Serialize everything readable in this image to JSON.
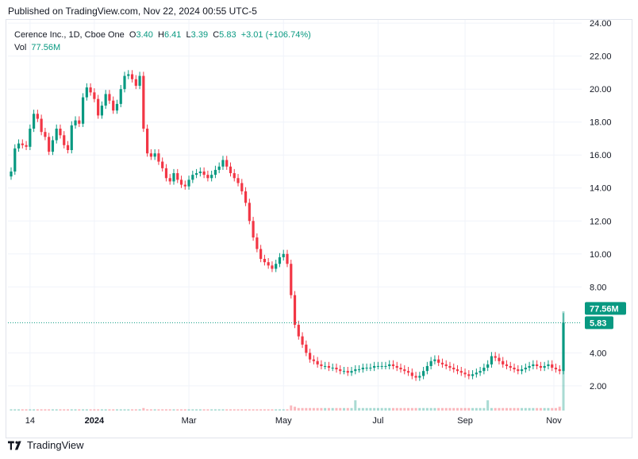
{
  "publish_text": "Published on TradingView.com, Nov 22, 2024 00:55 UTC-5",
  "legend": {
    "symbol": "Cerence Inc., 1D, Cboe One",
    "o_label": "O",
    "o_value": "3.40",
    "h_label": "H",
    "h_value": "6.41",
    "l_label": "L",
    "l_value": "3.39",
    "c_label": "C",
    "c_value": "5.83",
    "change": "+3.01 (+106.74%)",
    "vol_label": "Vol",
    "vol_value": "77.56M"
  },
  "footer": {
    "brand": "TradingView"
  },
  "colors": {
    "up": "#089981",
    "down": "#f23645",
    "grid": "#f0f3fa",
    "axis_text": "#131722"
  },
  "chart_data": {
    "type": "candlestick",
    "title": "Cerence Inc., 1D, Cboe One",
    "x_ticks": [
      "14",
      "2024",
      "Mar",
      "May",
      "Jul",
      "Sep",
      "Nov"
    ],
    "y_ticks": [
      "2.00",
      "4.00",
      "8.00",
      "10.00",
      "12.00",
      "14.00",
      "16.00",
      "18.00",
      "20.00",
      "22.00",
      "24.00"
    ],
    "ylim": [
      0.5,
      24.2
    ],
    "last_price_label": "5.83",
    "volume_label": "77.56M",
    "close_approx": [
      15.0,
      16.4,
      16.7,
      16.6,
      16.5,
      17.6,
      18.5,
      18.2,
      17.4,
      17.1,
      16.2,
      16.9,
      17.6,
      17.2,
      16.6,
      16.3,
      17.8,
      18.1,
      17.9,
      19.5,
      20.1,
      19.8,
      19.4,
      18.4,
      19.0,
      19.7,
      19.3,
      18.7,
      19.1,
      20.0,
      20.8,
      20.9,
      20.6,
      20.2,
      20.8,
      17.6,
      16.1,
      15.9,
      16.1,
      15.6,
      15.2,
      14.6,
      14.4,
      14.9,
      14.5,
      14.2,
      14.1,
      14.5,
      14.8,
      14.9,
      15.0,
      14.8,
      14.6,
      14.8,
      15.1,
      15.3,
      15.7,
      15.3,
      14.9,
      14.6,
      14.3,
      13.8,
      13.1,
      12.0,
      11.0,
      10.3,
      9.7,
      9.5,
      9.3,
      9.1,
      9.4,
      9.8,
      10.0,
      9.4,
      7.5,
      5.7,
      5.0,
      4.5,
      4.0,
      3.6,
      3.5,
      3.3,
      3.2,
      3.2,
      3.1,
      3.1,
      3.0,
      2.9,
      2.9,
      2.8,
      2.9,
      3.0,
      3.0,
      3.1,
      3.1,
      3.1,
      3.2,
      3.2,
      3.2,
      3.2,
      3.3,
      3.2,
      3.1,
      3.0,
      2.9,
      2.8,
      2.6,
      2.5,
      2.6,
      2.9,
      3.2,
      3.5,
      3.6,
      3.4,
      3.3,
      3.2,
      3.1,
      3.0,
      2.9,
      2.8,
      2.7,
      2.6,
      2.7,
      2.8,
      2.9,
      3.1,
      3.3,
      3.8,
      3.7,
      3.5,
      3.3,
      3.2,
      3.1,
      3.0,
      2.9,
      3.0,
      3.1,
      3.2,
      3.3,
      3.2,
      3.1,
      3.2,
      3.3,
      3.1,
      3.0,
      2.9,
      5.83
    ],
    "volume_approx": [
      1,
      1,
      1,
      1,
      1,
      1,
      1,
      1,
      1,
      1,
      1,
      1,
      1,
      1,
      1,
      1,
      1,
      1,
      1,
      1,
      1,
      1,
      1,
      1,
      1,
      1,
      1,
      1,
      1,
      1,
      1,
      1,
      1,
      1,
      1,
      2,
      1,
      1,
      1,
      1,
      1,
      1,
      1,
      1,
      1,
      1,
      1,
      1,
      1,
      1,
      1,
      1,
      1,
      1,
      1,
      1,
      1,
      1,
      1,
      1,
      1,
      1,
      1,
      1,
      1,
      1,
      1,
      1,
      1,
      1,
      1,
      1,
      1,
      1,
      4,
      3,
      2,
      2,
      2,
      2,
      2,
      2,
      2,
      2,
      2,
      2,
      2,
      2,
      2,
      2,
      2,
      8,
      2,
      2,
      2,
      2,
      2,
      2,
      2,
      2,
      2,
      2,
      2,
      2,
      2,
      2,
      2,
      2,
      2,
      2,
      2,
      2,
      2,
      2,
      2,
      2,
      2,
      2,
      2,
      2,
      2,
      2,
      2,
      2,
      2,
      2,
      8,
      2,
      2,
      2,
      2,
      2,
      2,
      2,
      2,
      2,
      2,
      2,
      2,
      2,
      2,
      2,
      2,
      2,
      2,
      3,
      77.56
    ]
  }
}
